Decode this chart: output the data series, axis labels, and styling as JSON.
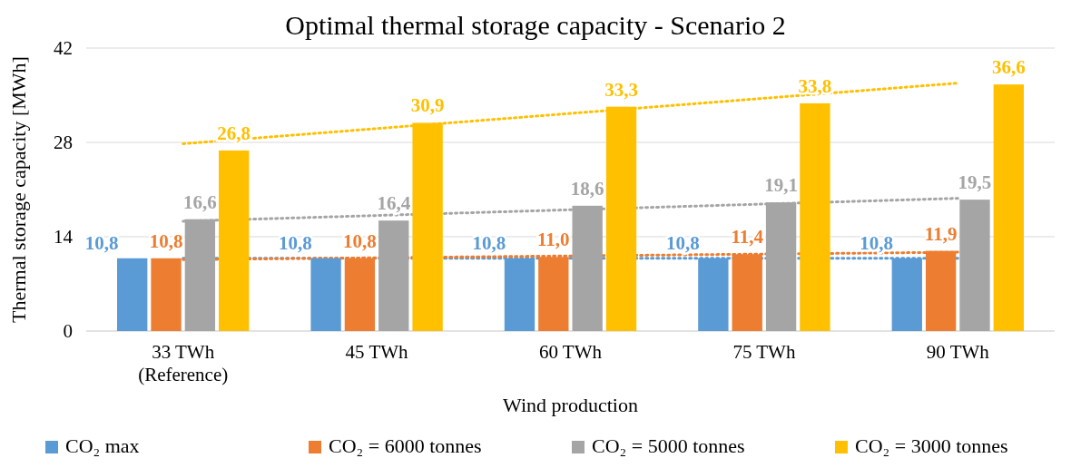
{
  "chart_data": {
    "type": "bar",
    "title": "Optimal thermal storage capacity - Scenario 2",
    "xlabel": "Wind production",
    "ylabel": "Thermal storage capacity [MWh]",
    "categories": [
      "33 TWh\n(Reference)",
      "45 TWh",
      "60 TWh",
      "75 TWh",
      "90 TWh"
    ],
    "ylim": [
      0,
      42
    ],
    "yticks": [
      0,
      14,
      28,
      42
    ],
    "grid": "y",
    "legend": "bottom",
    "series": [
      {
        "name": "CO₂  max",
        "color": "#5b9bd5",
        "values": [
          10.8,
          10.8,
          10.8,
          10.8,
          10.8
        ],
        "value_labels": [
          "10,8",
          "10,8",
          "10,8",
          "10,8",
          "10,8"
        ]
      },
      {
        "name": "CO₂ = 6000 tonnes",
        "color": "#ed7d31",
        "values": [
          10.8,
          10.8,
          11.0,
          11.4,
          11.9
        ],
        "value_labels": [
          "10,8",
          "10,8",
          "11,0",
          "11,4",
          "11,9"
        ]
      },
      {
        "name": "CO₂ = 5000 tonnes",
        "color": "#a5a5a5",
        "values": [
          16.6,
          16.4,
          18.6,
          19.1,
          19.5
        ],
        "value_labels": [
          "16,6",
          "16,4",
          "18,6",
          "19,1",
          "19,5"
        ]
      },
      {
        "name": "CO₂ = 3000 tonnes",
        "color": "#ffc000",
        "values": [
          26.8,
          30.9,
          33.3,
          33.8,
          36.6
        ],
        "value_labels": [
          "26,8",
          "30,9",
          "33,3",
          "33,8",
          "36,6"
        ]
      },
      {
        "type": "line",
        "color": "#5b9bd5",
        "x": [
          "33 TWh\n(Reference)",
          "90 TWh"
        ],
        "values": [
          10.8,
          10.8
        ],
        "line_style": "dotted",
        "marker": "none"
      },
      {
        "type": "line",
        "color": "#ed7d31",
        "x": [
          "33 TWh\n(Reference)",
          "90 TWh"
        ],
        "values": [
          10.6,
          11.7
        ],
        "line_style": "dotted",
        "marker": "none"
      },
      {
        "type": "line",
        "color": "#a5a5a5",
        "x": [
          "33 TWh\n(Reference)",
          "90 TWh"
        ],
        "values": [
          16.3,
          19.7
        ],
        "line_style": "dotted",
        "marker": "none"
      },
      {
        "type": "line",
        "color": "#ffc000",
        "x": [
          "33 TWh\n(Reference)",
          "90 TWh"
        ],
        "values": [
          27.8,
          36.8
        ],
        "line_style": "dotted",
        "marker": "none"
      }
    ]
  }
}
